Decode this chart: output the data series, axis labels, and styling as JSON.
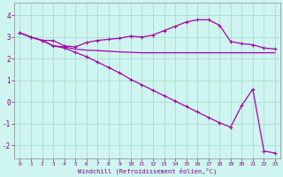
{
  "xlabel": "Windchill (Refroidissement éolien,°C)",
  "background_color": "#cef5f0",
  "grid_color": "#aaddcc",
  "line_color": "#aa00aa",
  "xlim": [
    -0.5,
    23.5
  ],
  "ylim": [
    -2.6,
    4.6
  ],
  "yticks": [
    -2,
    -1,
    0,
    1,
    2,
    3,
    4
  ],
  "xticks": [
    0,
    1,
    2,
    3,
    4,
    5,
    6,
    7,
    8,
    9,
    10,
    11,
    12,
    13,
    14,
    15,
    16,
    17,
    18,
    19,
    20,
    21,
    22,
    23
  ],
  "series1_x": [
    0,
    1,
    2,
    3,
    4,
    5,
    6,
    7,
    8,
    9,
    10,
    11,
    12,
    13,
    14,
    15,
    16,
    17,
    18,
    19,
    20,
    21,
    22,
    23
  ],
  "series1_y": [
    3.2,
    3.0,
    2.85,
    2.85,
    2.6,
    2.55,
    2.75,
    2.85,
    2.9,
    2.95,
    3.05,
    3.0,
    3.1,
    3.3,
    3.5,
    3.7,
    3.8,
    3.8,
    3.55,
    2.8,
    2.7,
    2.65,
    2.5,
    2.45
  ],
  "series2_x": [
    0,
    1,
    2,
    3,
    4,
    5,
    6,
    7,
    8,
    9,
    10,
    11,
    12,
    13,
    14,
    15,
    16,
    17,
    18,
    19,
    20,
    21,
    22,
    23
  ],
  "series2_y": [
    3.2,
    3.0,
    2.85,
    2.6,
    2.55,
    2.45,
    2.4,
    2.38,
    2.35,
    2.32,
    2.3,
    2.28,
    2.28,
    2.28,
    2.28,
    2.28,
    2.28,
    2.28,
    2.28,
    2.28,
    2.28,
    2.28,
    2.28,
    2.28
  ],
  "series3_x": [
    0,
    1,
    2,
    3,
    4,
    5,
    6,
    7,
    8,
    9,
    10,
    11,
    12,
    13,
    14,
    15,
    16,
    17,
    18,
    19,
    20,
    21,
    22,
    23
  ],
  "series3_y": [
    3.2,
    3.0,
    2.85,
    2.6,
    2.5,
    2.3,
    2.1,
    1.85,
    1.6,
    1.35,
    1.05,
    0.8,
    0.55,
    0.3,
    0.05,
    -0.2,
    -0.45,
    -0.7,
    -0.95,
    -1.15,
    -0.15,
    0.6,
    -2.25,
    -2.35
  ]
}
